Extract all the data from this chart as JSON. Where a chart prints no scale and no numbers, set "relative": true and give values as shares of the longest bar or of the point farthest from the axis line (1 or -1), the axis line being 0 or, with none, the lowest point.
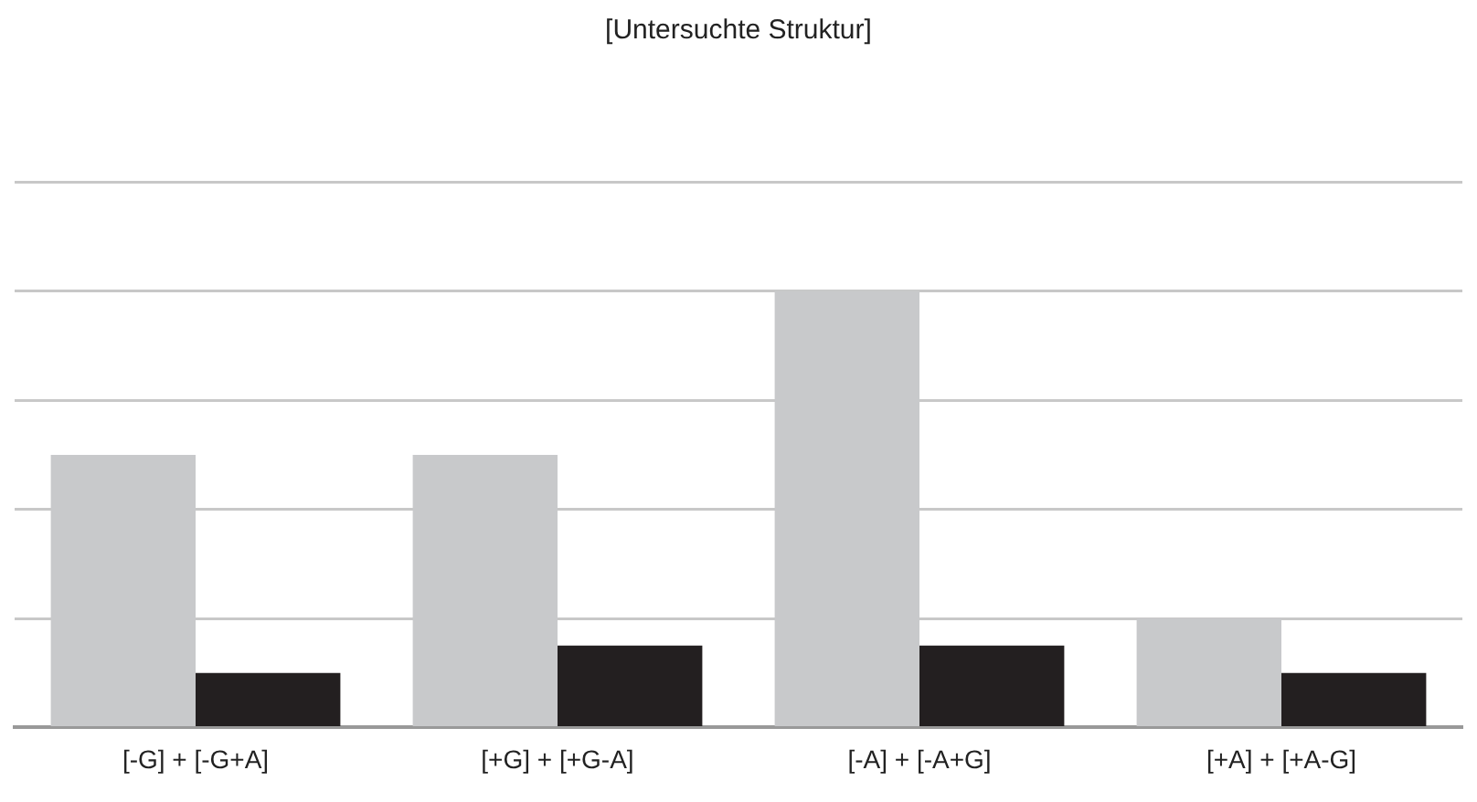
{
  "chart_data": {
    "type": "bar",
    "title": "[Untersuchte Struktur]",
    "relative": true,
    "grid": "y",
    "categories": [
      "[-G] + [-G+A]",
      "[+G] + [+G-A]",
      "[-A] + [-A+G]",
      "[+A] + [+A-G]"
    ],
    "series": [
      {
        "color": "#c8c9cb",
        "values": [
          0.625,
          0.625,
          1,
          0.25
        ]
      },
      {
        "color": "#231f20",
        "values": [
          0.125,
          0.1875,
          0.1875,
          0.125
        ]
      }
    ]
  }
}
